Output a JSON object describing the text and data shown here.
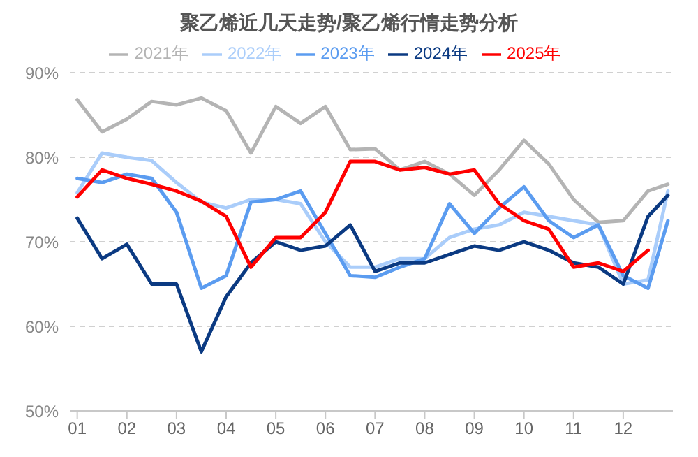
{
  "chart_data": {
    "type": "line",
    "title": "聚乙烯近几天走势/聚乙烯行情走势分析",
    "x": [
      1,
      1.5,
      2,
      2.5,
      3,
      3.5,
      4,
      4.5,
      5,
      5.5,
      6,
      6.5,
      7,
      7.5,
      8,
      8.5,
      9,
      9.5,
      10,
      10.5,
      11,
      11.5,
      12,
      12.5,
      12.9
    ],
    "xlim": [
      0.85,
      13
    ],
    "xticks": [
      {
        "value": 1,
        "label": "01"
      },
      {
        "value": 2,
        "label": "02"
      },
      {
        "value": 3,
        "label": "03"
      },
      {
        "value": 4,
        "label": "04"
      },
      {
        "value": 5,
        "label": "05"
      },
      {
        "value": 6,
        "label": "06"
      },
      {
        "value": 7,
        "label": "07"
      },
      {
        "value": 8,
        "label": "08"
      },
      {
        "value": 9,
        "label": "09"
      },
      {
        "value": 10,
        "label": "10"
      },
      {
        "value": 11,
        "label": "11"
      },
      {
        "value": 12,
        "label": "12"
      }
    ],
    "ylim": [
      50,
      90
    ],
    "yticks": [
      {
        "value": 50,
        "label": "50%"
      },
      {
        "value": 60,
        "label": "60%"
      },
      {
        "value": 70,
        "label": "70%"
      },
      {
        "value": 80,
        "label": "80%"
      },
      {
        "value": 90,
        "label": "90%"
      }
    ],
    "grid": "y",
    "legend": "top",
    "marker": "none",
    "line_style": "solid",
    "series": [
      {
        "name": "2021年",
        "color": "#b4b4b4",
        "values": [
          86.8,
          83,
          84.5,
          86.6,
          86.2,
          87,
          85.5,
          80.5,
          86,
          84,
          86,
          80.9,
          81,
          78.5,
          79.5,
          78,
          75.5,
          78.5,
          82,
          79.2,
          75,
          72.3,
          72.5,
          76,
          76.8
        ]
      },
      {
        "name": "2022年",
        "color": "#aacdfa",
        "values": [
          75.8,
          80.5,
          80,
          79.6,
          77,
          74.7,
          74,
          75,
          75,
          74.5,
          70,
          67,
          67,
          68,
          68,
          70.5,
          71.5,
          72,
          73.5,
          73,
          72.5,
          72,
          65,
          65.5,
          76
        ]
      },
      {
        "name": "2023年",
        "color": "#5b9cf0",
        "values": [
          77.5,
          77,
          78,
          77.5,
          73.5,
          64.5,
          66,
          74.7,
          75,
          76,
          71,
          66,
          65.8,
          67,
          68,
          74.5,
          71,
          74,
          76.5,
          72.5,
          70.5,
          72,
          66,
          64.5,
          72.5
        ]
      },
      {
        "name": "2024年",
        "color": "#0b3a82",
        "values": [
          72.8,
          68,
          69.7,
          65,
          65,
          57,
          63.5,
          67.5,
          70,
          69,
          69.5,
          72,
          66.5,
          67.5,
          67.5,
          68.5,
          69.5,
          69,
          70,
          69,
          67.5,
          67,
          65,
          73,
          75.5
        ]
      },
      {
        "name": "2025年",
        "color": "#ff0000",
        "values": [
          75.3,
          78.5,
          77.5,
          76.8,
          76,
          74.8,
          73,
          67,
          70.5,
          70.5,
          73.5,
          79.5,
          79.5,
          78.5,
          78.8,
          78,
          78.5,
          74.5,
          72.5,
          71.5,
          67,
          67.5,
          66.5,
          69,
          null
        ]
      }
    ]
  }
}
